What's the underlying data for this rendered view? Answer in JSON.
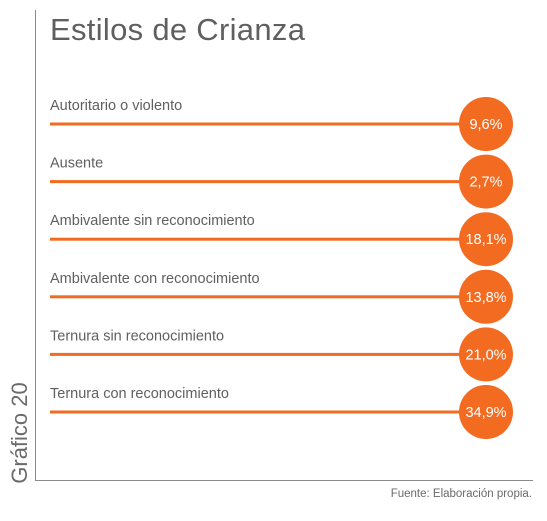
{
  "title": "Estilos de Crianza",
  "side_label": "Gráfico 20",
  "source": "Fuente: Elaboración propia.",
  "colors": {
    "accent": "#f26b21",
    "text": "#5f5f5f",
    "frame": "#8a8a8a"
  },
  "chart_data": {
    "type": "bar",
    "title": "Estilos de Crianza",
    "categories": [
      "Autoritario o violento",
      "Ausente",
      "Ambivalente sin reconocimiento",
      "Ambivalente con reconocimiento",
      "Ternura sin reconocimiento",
      "Ternura con reconocimiento"
    ],
    "values": [
      9.6,
      2.7,
      18.1,
      13.8,
      21.0,
      34.9
    ],
    "value_labels": [
      "9,6%",
      "2,7%",
      "18,1%",
      "13,8%",
      "21,0%",
      "34,9%"
    ],
    "unit": "%",
    "orientation": "horizontal"
  }
}
